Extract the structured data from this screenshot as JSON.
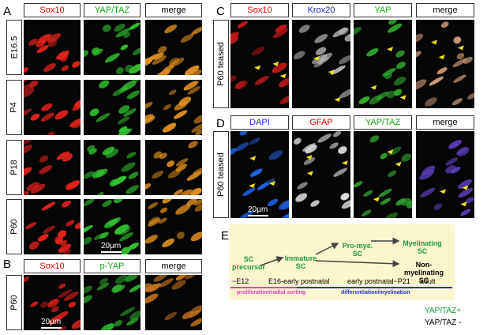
{
  "panel_a": {
    "label": "A",
    "columns": [
      "Sox10",
      "YAP/TAZ",
      "merge"
    ],
    "rows": [
      "E16.5",
      "P4",
      "P18",
      "P60"
    ],
    "scale_bar": "20μm"
  },
  "panel_b": {
    "label": "B",
    "columns": [
      "Sox10",
      "p-YAP",
      "merge"
    ],
    "rows": [
      "P60"
    ],
    "scale_bar": "20μm"
  },
  "panel_c": {
    "label": "C",
    "columns": [
      "Sox10",
      "Krox20",
      "YAP",
      "merge"
    ],
    "rows": [
      "P60 teased"
    ]
  },
  "panel_d": {
    "label": "D",
    "columns": [
      "DAPI",
      "GFAP",
      "YAP/TAZ",
      "merge"
    ],
    "rows": [
      "P60 teased"
    ],
    "scale_bar": "20μm"
  },
  "panel_e": {
    "label": "E",
    "stages": [
      "SC precursor",
      "Immature SC",
      "Pro-mye. SC",
      "Myelinating SC",
      "Non-myelinating SC"
    ],
    "ages": [
      "~E12",
      "E16-early postnatal",
      "early postnatal~P21",
      "adult"
    ],
    "phases": [
      "proliferation/radial sorting",
      "differentiation/myelination"
    ],
    "legend": [
      "YAP/TAZ+",
      "YAP/TAZ -"
    ]
  }
}
